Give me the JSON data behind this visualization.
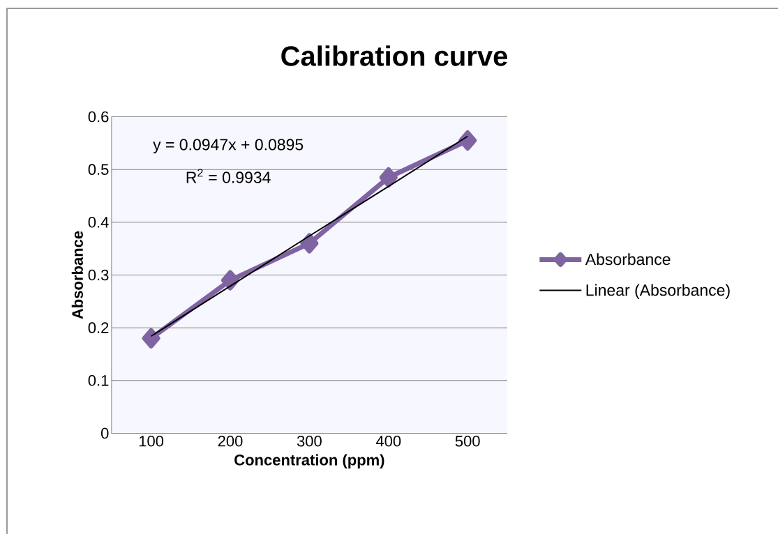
{
  "chart_data": {
    "type": "line",
    "title": "Calibration curve",
    "xlabel": "Concentration (ppm)",
    "ylabel": "Absorbance",
    "categories": [
      "100",
      "200",
      "300",
      "400",
      "500"
    ],
    "series": [
      {
        "name": "Absorbance",
        "color": "#8064a2",
        "marker": "diamond",
        "values": [
          0.18,
          0.29,
          0.36,
          0.485,
          0.555
        ]
      },
      {
        "name": "Linear (Absorbance)",
        "color": "#000000",
        "marker": "none",
        "values": [
          0.184,
          0.279,
          0.374,
          0.468,
          0.563
        ]
      }
    ],
    "ylim": [
      0,
      0.6
    ],
    "yticks": [
      0,
      0.1,
      0.2,
      0.3,
      0.4,
      0.5,
      0.6
    ],
    "grid": "y",
    "legend": "right",
    "annotations": [
      "y = 0.0947x + 0.0895",
      "R$^{2}$ = 0.9934"
    ]
  }
}
